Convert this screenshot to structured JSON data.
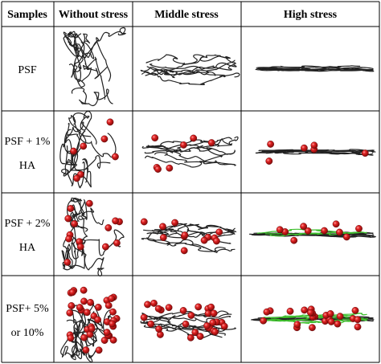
{
  "header": {
    "samples": "Samples",
    "without": "Without stress",
    "middle": "Middle stress",
    "high": "High stress"
  },
  "rows": [
    {
      "label_line1": "PSF",
      "label_line2": "",
      "ha_level": 0
    },
    {
      "label_line1": "PSF + 1%",
      "label_line2": "HA",
      "ha_level": 1
    },
    {
      "label_line1": "PSF + 2%",
      "label_line2": "HA",
      "ha_level": 2
    },
    {
      "label_line1": "PSF+ 5%",
      "label_line2": "or 10%",
      "ha_level": 3
    }
  ],
  "colors": {
    "particle": "#c41a1a",
    "chain": "#222222",
    "green_chain": "#3fbf2e",
    "grid_line": "#000000"
  }
}
